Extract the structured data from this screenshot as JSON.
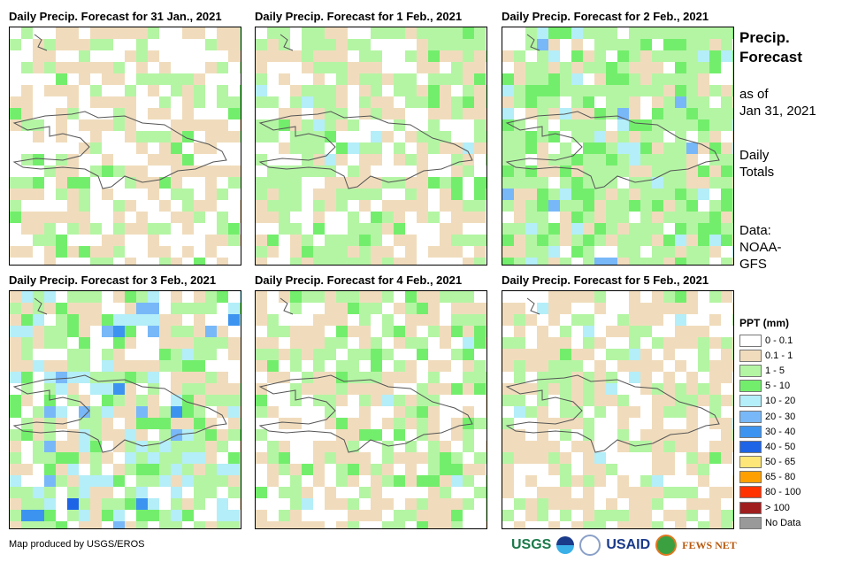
{
  "panels": [
    {
      "title": "Daily Precip. Forecast for 31 Jan., 2021",
      "mix": [
        0.45,
        0.35,
        0.15,
        0.05,
        0,
        0,
        0,
        0
      ]
    },
    {
      "title": "Daily Precip. Forecast for 1 Feb., 2021",
      "mix": [
        0.3,
        0.3,
        0.32,
        0.06,
        0.02,
        0,
        0,
        0
      ]
    },
    {
      "title": "Daily Precip. Forecast for 2 Feb., 2021",
      "mix": [
        0.1,
        0.22,
        0.45,
        0.15,
        0.06,
        0.02,
        0,
        0
      ]
    },
    {
      "title": "Daily Precip. Forecast for 3 Feb., 2021",
      "mix": [
        0.2,
        0.25,
        0.3,
        0.08,
        0.13,
        0.02,
        0.01,
        0.01
      ]
    },
    {
      "title": "Daily Precip. Forecast for 4 Feb., 2021",
      "mix": [
        0.3,
        0.35,
        0.25,
        0.08,
        0.02,
        0,
        0,
        0
      ]
    },
    {
      "title": "Daily Precip. Forecast for 5 Feb., 2021",
      "mix": [
        0.35,
        0.4,
        0.22,
        0.01,
        0.02,
        0,
        0,
        0
      ]
    }
  ],
  "side": {
    "title1": "Precip.",
    "title2": "Forecast",
    "asof1": "as of",
    "asof2": "Jan 31, 2021",
    "daily1": "Daily",
    "daily2": "Totals",
    "data1": "Data:",
    "data2": "NOAA-",
    "data3": "GFS"
  },
  "legend": {
    "title": "PPT (mm)",
    "items": [
      {
        "label": "0 - 0.1",
        "color": "#ffffff"
      },
      {
        "label": "0.1 - 1",
        "color": "#f0dcbc"
      },
      {
        "label": "1 - 5",
        "color": "#b4f5a4"
      },
      {
        "label": "5 - 10",
        "color": "#73ee6c"
      },
      {
        "label": "10 - 20",
        "color": "#b4eef8"
      },
      {
        "label": "20 - 30",
        "color": "#78b8f8"
      },
      {
        "label": "30 - 40",
        "color": "#3c94f0"
      },
      {
        "label": "40 - 50",
        "color": "#1e64e6"
      },
      {
        "label": "50 - 65",
        "color": "#ffe678"
      },
      {
        "label": "65 - 80",
        "color": "#ffa000"
      },
      {
        "label": "80 - 100",
        "color": "#ff3200"
      },
      {
        "label": "> 100",
        "color": "#a01e1e"
      },
      {
        "label": "No Data",
        "color": "#999999"
      }
    ]
  },
  "footer": "Map produced by USGS/EROS",
  "logos": {
    "usgs": "USGS",
    "usgs_tag": "science for a changing world",
    "noaa": "NOAA",
    "usaid": "USAID",
    "usaid_tag": "FROM THE AMERICAN PEOPLE",
    "fews": "FEWS NET"
  }
}
